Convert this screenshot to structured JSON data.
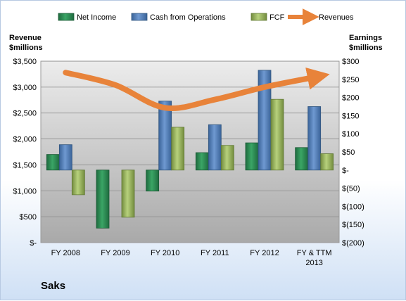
{
  "chart_data": {
    "type": "bar",
    "categories": [
      "FY 2008",
      "FY 2009",
      "FY 2010",
      "FY 2011",
      "FY 2012",
      "FY & TTM 2013"
    ],
    "legend_position": "top",
    "grid": true,
    "left_axis": {
      "title": [
        "Revenue",
        "$millions"
      ],
      "range": [
        0,
        3500
      ],
      "ticks": [
        0,
        500,
        1000,
        1500,
        2000,
        2500,
        3000,
        3500
      ],
      "tick_labels": [
        "$-",
        "$500",
        "$1,000",
        "$1,500",
        "$2,000",
        "$2,500",
        "$3,000",
        "$3,500"
      ]
    },
    "right_axis": {
      "title": [
        "Earnings",
        "$millions"
      ],
      "range": [
        -200,
        300
      ],
      "ticks": [
        -200,
        -150,
        -100,
        -50,
        0,
        50,
        100,
        150,
        200,
        250,
        300
      ],
      "tick_labels": [
        "$(200)",
        "$(150)",
        "$(100)",
        "$(50)",
        "$-",
        "$50",
        "$100",
        "$150",
        "$200",
        "$250",
        "$300"
      ]
    },
    "series": [
      {
        "name": "Net Income",
        "kind": "bar",
        "axis": "right",
        "color": "#2e8b57",
        "values": [
          43,
          -160,
          -58,
          48,
          75,
          62
        ]
      },
      {
        "name": "Cash from Operations",
        "kind": "bar",
        "axis": "right",
        "color": "#4f81bd",
        "values": [
          70,
          0,
          190,
          125,
          275,
          175
        ]
      },
      {
        "name": "FCF",
        "kind": "bar",
        "axis": "right",
        "color": "#9bbb59",
        "values": [
          -68,
          -130,
          118,
          68,
          195,
          45
        ]
      },
      {
        "name": "Revenues",
        "kind": "line",
        "axis": "left",
        "color": "#e8833a",
        "values": [
          3280,
          3040,
          2600,
          2760,
          3000,
          3190
        ]
      }
    ],
    "company": "Saks"
  }
}
